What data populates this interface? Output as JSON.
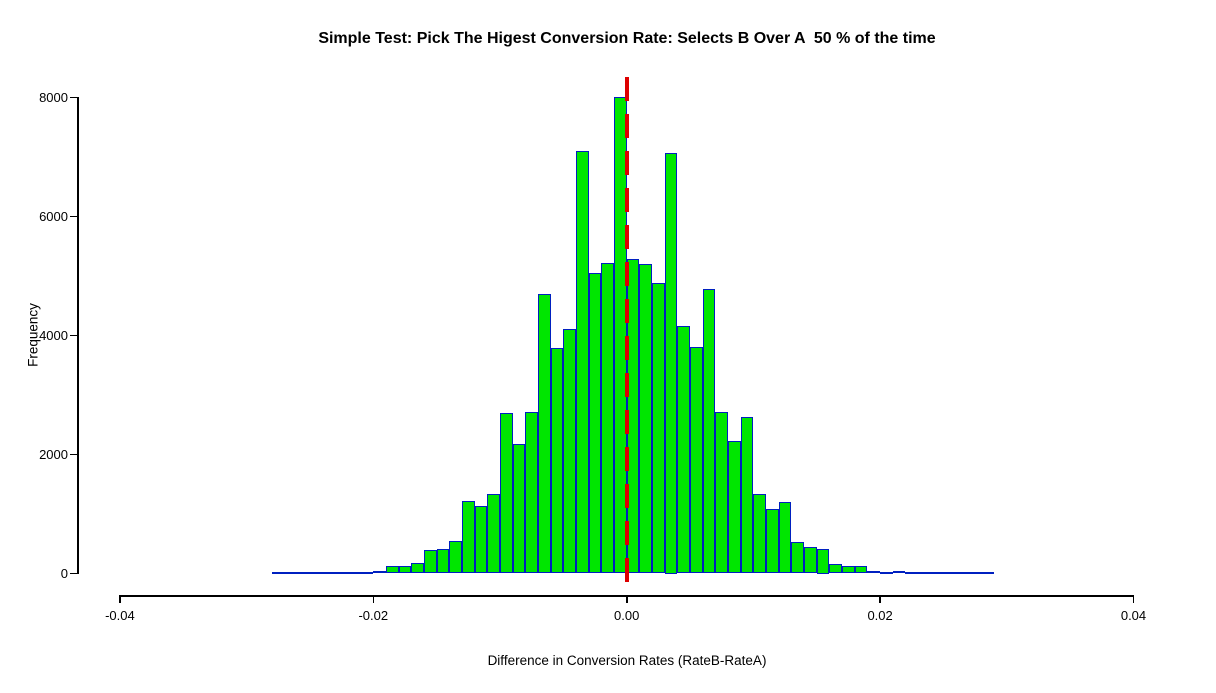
{
  "chart_data": {
    "type": "histogram",
    "title": "Simple Test: Pick The Higest Conversion Rate: Selects B Over A  50 % of the time",
    "xlabel": "Difference in Conversion Rates (RateB-RateA)",
    "ylabel": "Frequency",
    "xlim": [
      -0.044,
      0.044
    ],
    "ylim": [
      0,
      8000
    ],
    "grid": false,
    "legend": false,
    "x_tick_values": [
      -0.04,
      -0.02,
      0,
      0.02,
      0.04
    ],
    "x_tick_labels": [
      "-0.04",
      "-0.02",
      "0.00",
      "0.02",
      "0.04"
    ],
    "y_tick_values": [
      0,
      2000,
      4000,
      6000,
      8000
    ],
    "y_tick_labels": [
      "0",
      "2000",
      "4000",
      "6000",
      "8000"
    ],
    "bin_start": -0.028,
    "bin_width": 0.001,
    "frequencies": [
      3,
      4,
      5,
      7,
      10,
      15,
      25,
      30,
      48,
      118,
      127,
      183,
      392,
      409,
      543,
      1215,
      1131,
      1328,
      2690,
      2169,
      2717,
      4690,
      3792,
      4107,
      7104,
      5053,
      5221,
      7998,
      5283,
      5199,
      4874,
      7060,
      4157,
      3809,
      4779,
      2706,
      2229,
      2632,
      1333,
      1081,
      1193,
      531,
      437,
      420,
      156,
      118,
      120,
      40,
      15,
      40,
      12,
      9,
      7,
      5,
      4,
      3,
      2
    ],
    "reference_line": {
      "x": 0,
      "orientation": "vertical",
      "style": "dashed",
      "color": "#dd0000"
    },
    "colors": {
      "bar_fill": "#00e600",
      "bar_border": "#0020c0",
      "axis": "#000000",
      "text": "#000000"
    }
  }
}
